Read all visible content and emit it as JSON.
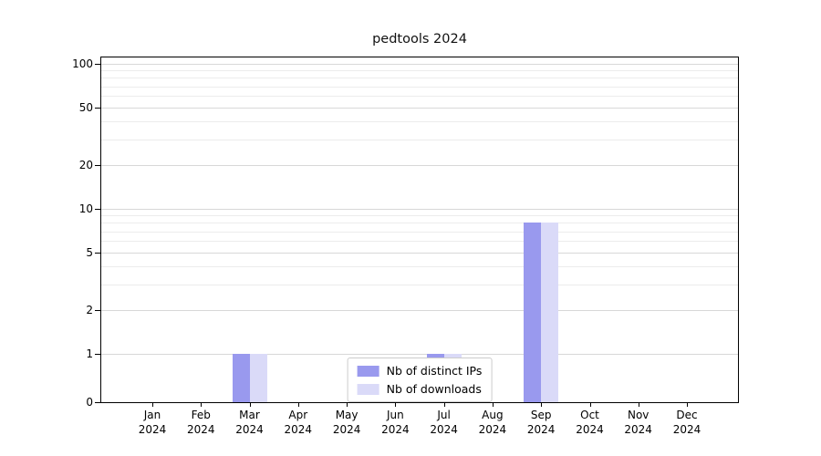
{
  "chart_data": {
    "type": "bar",
    "title": "pedtools 2024",
    "categories": [
      "Jan",
      "Feb",
      "Mar",
      "Apr",
      "May",
      "Jun",
      "Jul",
      "Aug",
      "Sep",
      "Oct",
      "Nov",
      "Dec"
    ],
    "category_year": "2024",
    "series": [
      {
        "name": "Nb of distinct IPs",
        "color": "#9999ee",
        "values": [
          0,
          0,
          1,
          0,
          0,
          0,
          1,
          0,
          8,
          0,
          0,
          0
        ]
      },
      {
        "name": "Nb of downloads",
        "color": "#dadaf8",
        "values": [
          0,
          0,
          1,
          0,
          0,
          0,
          1,
          0,
          8,
          0,
          0,
          0
        ]
      }
    ],
    "xlabel": "",
    "ylabel": "",
    "yscale": "log-like",
    "ylim": [
      0,
      100
    ],
    "ytick_labels": [
      100,
      50,
      20,
      10,
      5,
      2,
      1,
      0
    ],
    "minor_gridlines": [
      90,
      80,
      70,
      60,
      40,
      30,
      9,
      8,
      7,
      6,
      4,
      3
    ],
    "grid": "horizontal",
    "legend_position": "lower center",
    "colors": {
      "axis": "#000000",
      "grid_major": "#d8d8d8",
      "grid_minor": "#ececec",
      "background": "#ffffff"
    }
  }
}
